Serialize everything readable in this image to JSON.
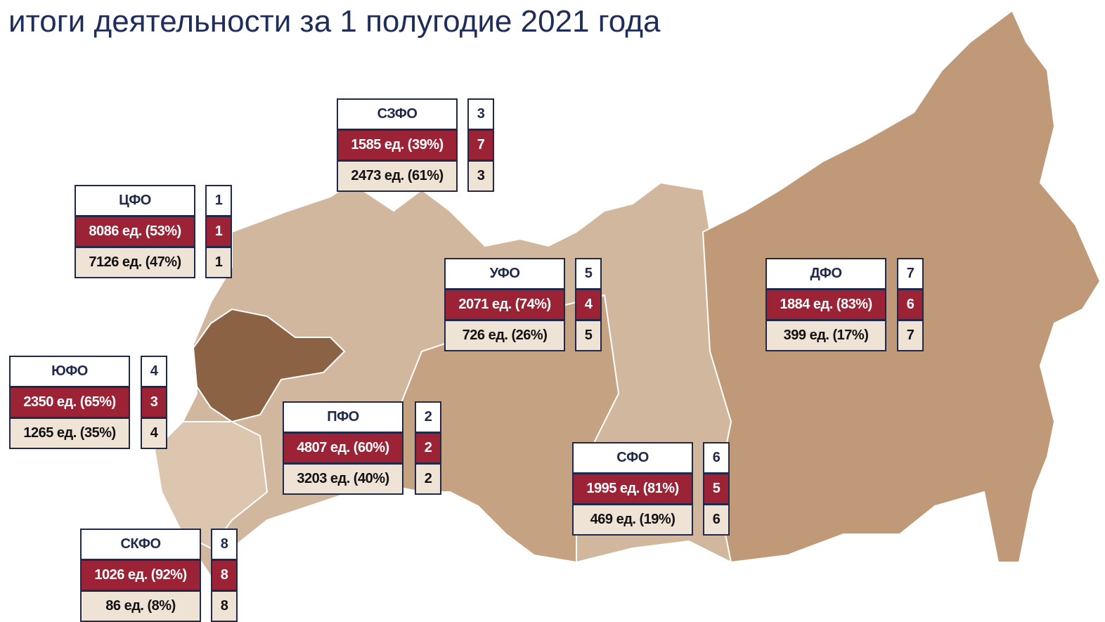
{
  "title": "итоги деятельности за 1 полугодие 2021 года",
  "districts": [
    {
      "name": "СЗФО",
      "rank": 3,
      "rows": [
        {
          "text": "1585 ед. (39%)",
          "rank": 7
        },
        {
          "text": "2473 ед. (61%)",
          "rank": 3
        }
      ]
    },
    {
      "name": "ЦФО",
      "rank": 1,
      "rows": [
        {
          "text": "8086 ед. (53%)",
          "rank": 1
        },
        {
          "text": "7126 ед. (47%)",
          "rank": 1
        }
      ]
    },
    {
      "name": "УФО",
      "rank": 5,
      "rows": [
        {
          "text": "2071 ед. (74%)",
          "rank": 4
        },
        {
          "text": "726 ед. (26%)",
          "rank": 5
        }
      ]
    },
    {
      "name": "ДФО",
      "rank": 7,
      "rows": [
        {
          "text": "1884 ед. (83%)",
          "rank": 6
        },
        {
          "text": "399 ед. (17%)",
          "rank": 7
        }
      ]
    },
    {
      "name": "ЮФО",
      "rank": 4,
      "rows": [
        {
          "text": "2350 ед. (65%)",
          "rank": 3
        },
        {
          "text": "1265 ед. (35%)",
          "rank": 4
        }
      ]
    },
    {
      "name": "ПФО",
      "rank": 2,
      "rows": [
        {
          "text": "4807 ед. (60%)",
          "rank": 2
        },
        {
          "text": "3203 ед. (40%)",
          "rank": 2
        }
      ]
    },
    {
      "name": "СФО",
      "rank": 6,
      "rows": [
        {
          "text": "1995 ед. (81%)",
          "rank": 5
        },
        {
          "text": "469 ед. (19%)",
          "rank": 6
        }
      ]
    },
    {
      "name": "СКФО",
      "rank": 8,
      "rows": [
        {
          "text": "1026 ед. (92%)",
          "rank": 8
        },
        {
          "text": "86 ед. (8%)",
          "rank": 8
        }
      ]
    }
  ]
}
